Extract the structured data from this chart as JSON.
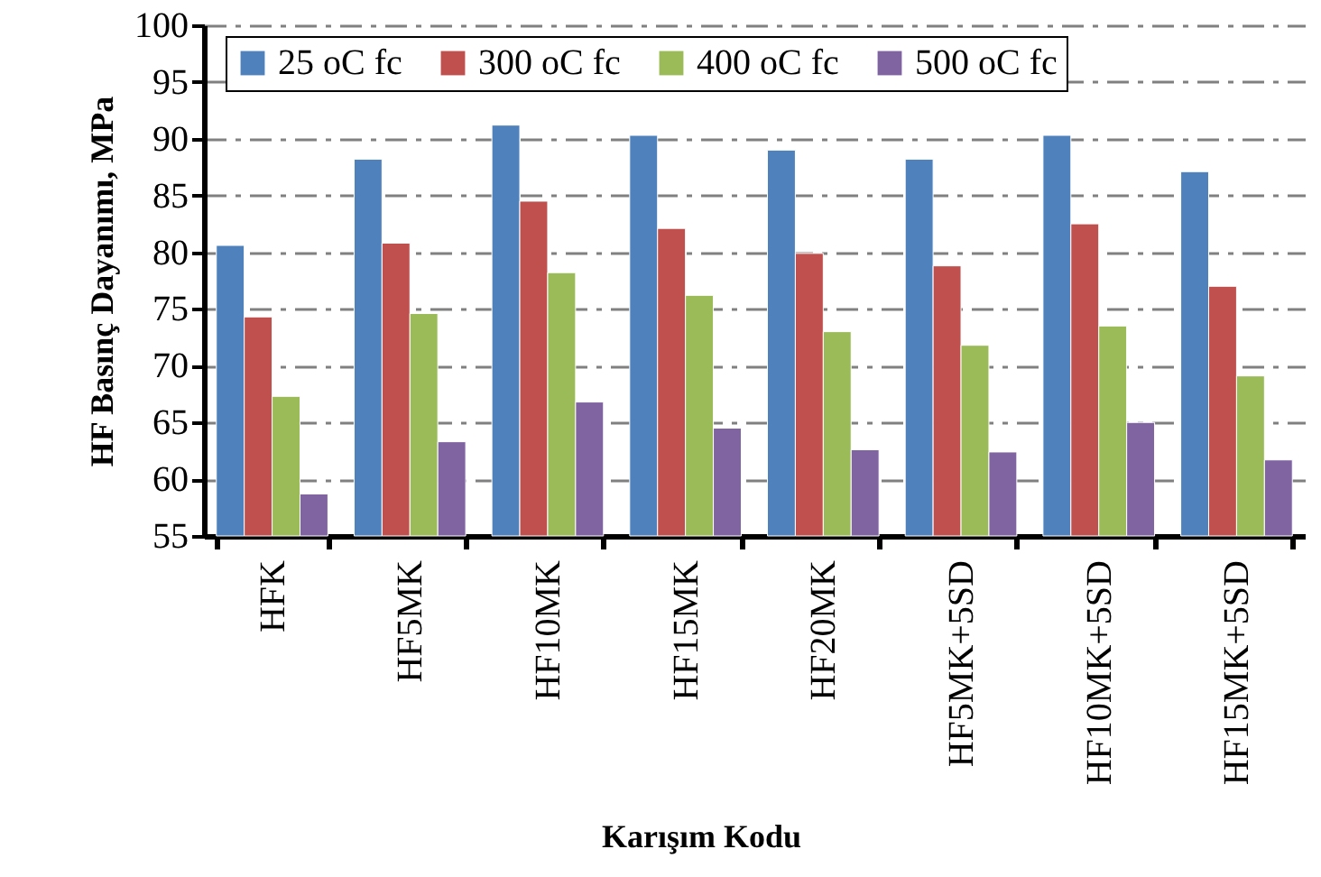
{
  "chart_data": {
    "type": "bar",
    "xlabel": "Karışım Kodu",
    "ylabel": "HF Basınç Dayanımı, MPa",
    "categories": [
      "HFK",
      "HF5MK",
      "HF10MK",
      "HF15MK",
      "HF20MK",
      "HF5MK+5SD",
      "HF10MK+5SD",
      "HF15MK+5SD"
    ],
    "series": [
      {
        "name": "25 oC fc",
        "color": "#4f81bd",
        "values": [
          80.6,
          88.2,
          91.2,
          90.3,
          89.0,
          88.2,
          90.3,
          87.1
        ]
      },
      {
        "name": "300 oC fc",
        "color": "#c0504d",
        "values": [
          74.3,
          80.8,
          84.5,
          82.1,
          79.9,
          78.8,
          82.5,
          77.0
        ]
      },
      {
        "name": "400 oC fc",
        "color": "#9bbb59",
        "values": [
          67.3,
          74.6,
          78.2,
          76.2,
          73.0,
          71.8,
          73.5,
          69.1
        ]
      },
      {
        "name": "500 oC fc",
        "color": "#8064a2",
        "values": [
          58.7,
          63.3,
          66.8,
          64.5,
          62.6,
          62.4,
          65.0,
          61.7
        ]
      }
    ],
    "ylim": [
      55,
      100
    ],
    "yticks": [
      55,
      60,
      65,
      70,
      75,
      80,
      85,
      90,
      95,
      100
    ],
    "grid": "y",
    "legend": "top"
  }
}
